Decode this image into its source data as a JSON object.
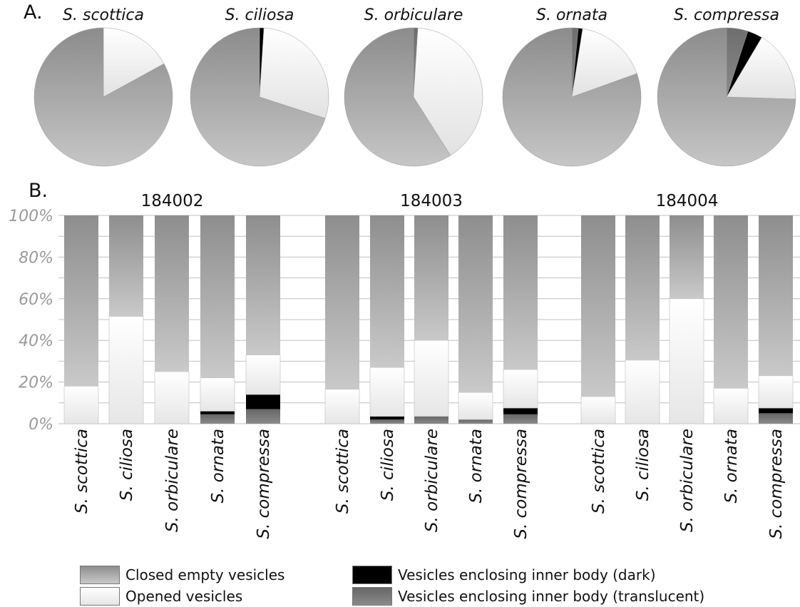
{
  "panel_labels": {
    "a": "A.",
    "b": "B."
  },
  "chart_data": [
    {
      "type": "pie",
      "panel": "A",
      "pies": [
        {
          "title": "S. scottica",
          "slices": [
            {
              "category": "translucent",
              "value": 0
            },
            {
              "category": "dark",
              "value": 0
            },
            {
              "category": "opened",
              "value": 17
            },
            {
              "category": "closed",
              "value": 83
            }
          ]
        },
        {
          "title": "S. ciliosa",
          "slices": [
            {
              "category": "translucent",
              "value": 0
            },
            {
              "category": "dark",
              "value": 1
            },
            {
              "category": "opened",
              "value": 29
            },
            {
              "category": "closed",
              "value": 70
            }
          ]
        },
        {
          "title": "S. orbiculare",
          "slices": [
            {
              "category": "translucent",
              "value": 1
            },
            {
              "category": "dark",
              "value": 0
            },
            {
              "category": "opened",
              "value": 40
            },
            {
              "category": "closed",
              "value": 59
            }
          ]
        },
        {
          "title": "S. ornata",
          "slices": [
            {
              "category": "translucent",
              "value": 1.5
            },
            {
              "category": "dark",
              "value": 1
            },
            {
              "category": "opened",
              "value": 17
            },
            {
              "category": "closed",
              "value": 80.5
            }
          ]
        },
        {
          "title": "S. compressa",
          "slices": [
            {
              "category": "translucent",
              "value": 5
            },
            {
              "category": "dark",
              "value": 3.5
            },
            {
              "category": "opened",
              "value": 17
            },
            {
              "category": "closed",
              "value": 74.5
            }
          ]
        }
      ]
    },
    {
      "type": "bar",
      "panel": "B",
      "stacked": true,
      "ylim": [
        0,
        100
      ],
      "yticks": [
        "0%",
        "20%",
        "40%",
        "60%",
        "80%",
        "100%"
      ],
      "groups": [
        {
          "label": "184002",
          "bars": [
            {
              "category": "S. scottica",
              "translucent": 0,
              "dark": 0,
              "opened": 18,
              "closed": 82
            },
            {
              "category": "S. ciliosa",
              "translucent": 0,
              "dark": 0,
              "opened": 51.5,
              "closed": 48.5
            },
            {
              "category": "S. orbiculare",
              "translucent": 0,
              "dark": 0,
              "opened": 25,
              "closed": 75
            },
            {
              "category": "S. ornata",
              "translucent": 4.5,
              "dark": 1.5,
              "opened": 16,
              "closed": 78
            },
            {
              "category": "S. compressa",
              "translucent": 7,
              "dark": 7,
              "opened": 19,
              "closed": 67
            }
          ]
        },
        {
          "label": "184003",
          "bars": [
            {
              "category": "S. scottica",
              "translucent": 0,
              "dark": 0,
              "opened": 16.5,
              "closed": 83.5
            },
            {
              "category": "S. ciliosa",
              "translucent": 2,
              "dark": 1.5,
              "opened": 23.5,
              "closed": 73
            },
            {
              "category": "S. orbiculare",
              "translucent": 3.5,
              "dark": 0,
              "opened": 36.5,
              "closed": 60
            },
            {
              "category": "S. ornata",
              "translucent": 2,
              "dark": 0,
              "opened": 13,
              "closed": 85
            },
            {
              "category": "S. compressa",
              "translucent": 4.5,
              "dark": 3,
              "opened": 18.5,
              "closed": 74
            }
          ]
        },
        {
          "label": "184004",
          "bars": [
            {
              "category": "S. scottica",
              "translucent": 0,
              "dark": 0,
              "opened": 13,
              "closed": 87
            },
            {
              "category": "S. ciliosa",
              "translucent": 0,
              "dark": 0,
              "opened": 30.5,
              "closed": 69.5
            },
            {
              "category": "S. orbiculare",
              "translucent": 0,
              "dark": 0,
              "opened": 60,
              "closed": 40
            },
            {
              "category": "S. ornata",
              "translucent": 0,
              "dark": 0,
              "opened": 17,
              "closed": 83
            },
            {
              "category": "S. compressa",
              "translucent": 5,
              "dark": 2.5,
              "opened": 15.5,
              "closed": 77
            }
          ]
        }
      ],
      "legend": [
        {
          "key": "closed",
          "label": "Closed empty vesicles"
        },
        {
          "key": "opened",
          "label": "Opened vesicles"
        },
        {
          "key": "dark",
          "label": "Vesicles enclosing inner body (dark)"
        },
        {
          "key": "translucent",
          "label": "Vesicles enclosing inner body (translucent)"
        }
      ],
      "colors": {
        "closed": "#9e9e9e",
        "opened": "#f0f0f0",
        "dark": "#000000",
        "translucent": "#7a7a7a",
        "grid": "#c0c0c0",
        "tick": "#9a9a9a"
      }
    }
  ]
}
